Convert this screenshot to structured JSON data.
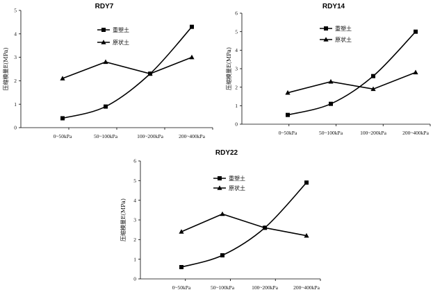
{
  "chart_data": [
    {
      "type": "line",
      "title": "RDY7",
      "ylabel": "压缩模量E(MPa)",
      "xlabel": "",
      "categories": [
        "0~50kPa",
        "50~100kPa",
        "100~200kPa",
        "200~400kPa"
      ],
      "ylim": [
        0,
        5
      ],
      "yticks": [
        0,
        1,
        2,
        3,
        4,
        5
      ],
      "series": [
        {
          "name": "重塑土",
          "marker": "square",
          "smooth": true,
          "values": [
            0.4,
            0.9,
            2.3,
            4.3
          ]
        },
        {
          "name": "原状土",
          "marker": "triangle",
          "smooth": false,
          "values": [
            2.1,
            2.8,
            2.3,
            3.0
          ]
        }
      ]
    },
    {
      "type": "line",
      "title": "RDY14",
      "ylabel": "压缩模量E(MPa)",
      "xlabel": "",
      "categories": [
        "0~50kPa",
        "50~100kPa",
        "100~200kPa",
        "200~400kPa"
      ],
      "ylim": [
        0,
        6
      ],
      "yticks": [
        0,
        1,
        2,
        3,
        4,
        5,
        6
      ],
      "series": [
        {
          "name": "重塑土",
          "marker": "square",
          "smooth": true,
          "values": [
            0.5,
            1.1,
            2.6,
            5.0
          ]
        },
        {
          "name": "原状土",
          "marker": "triangle",
          "smooth": false,
          "values": [
            1.7,
            2.3,
            1.9,
            2.8
          ]
        }
      ]
    },
    {
      "type": "line",
      "title": "RDY22",
      "ylabel": "压缩模量E(MPa)",
      "xlabel": "",
      "categories": [
        "0~50kPa",
        "50~100kPa",
        "100~200kPa",
        "200~400kPa"
      ],
      "ylim": [
        0,
        6
      ],
      "yticks": [
        0,
        1,
        2,
        3,
        4,
        5,
        6
      ],
      "series": [
        {
          "name": "重塑土",
          "marker": "square",
          "smooth": true,
          "values": [
            0.6,
            1.2,
            2.6,
            4.9
          ]
        },
        {
          "name": "原状土",
          "marker": "triangle",
          "smooth": false,
          "values": [
            2.4,
            3.3,
            2.6,
            2.2
          ]
        }
      ]
    }
  ]
}
